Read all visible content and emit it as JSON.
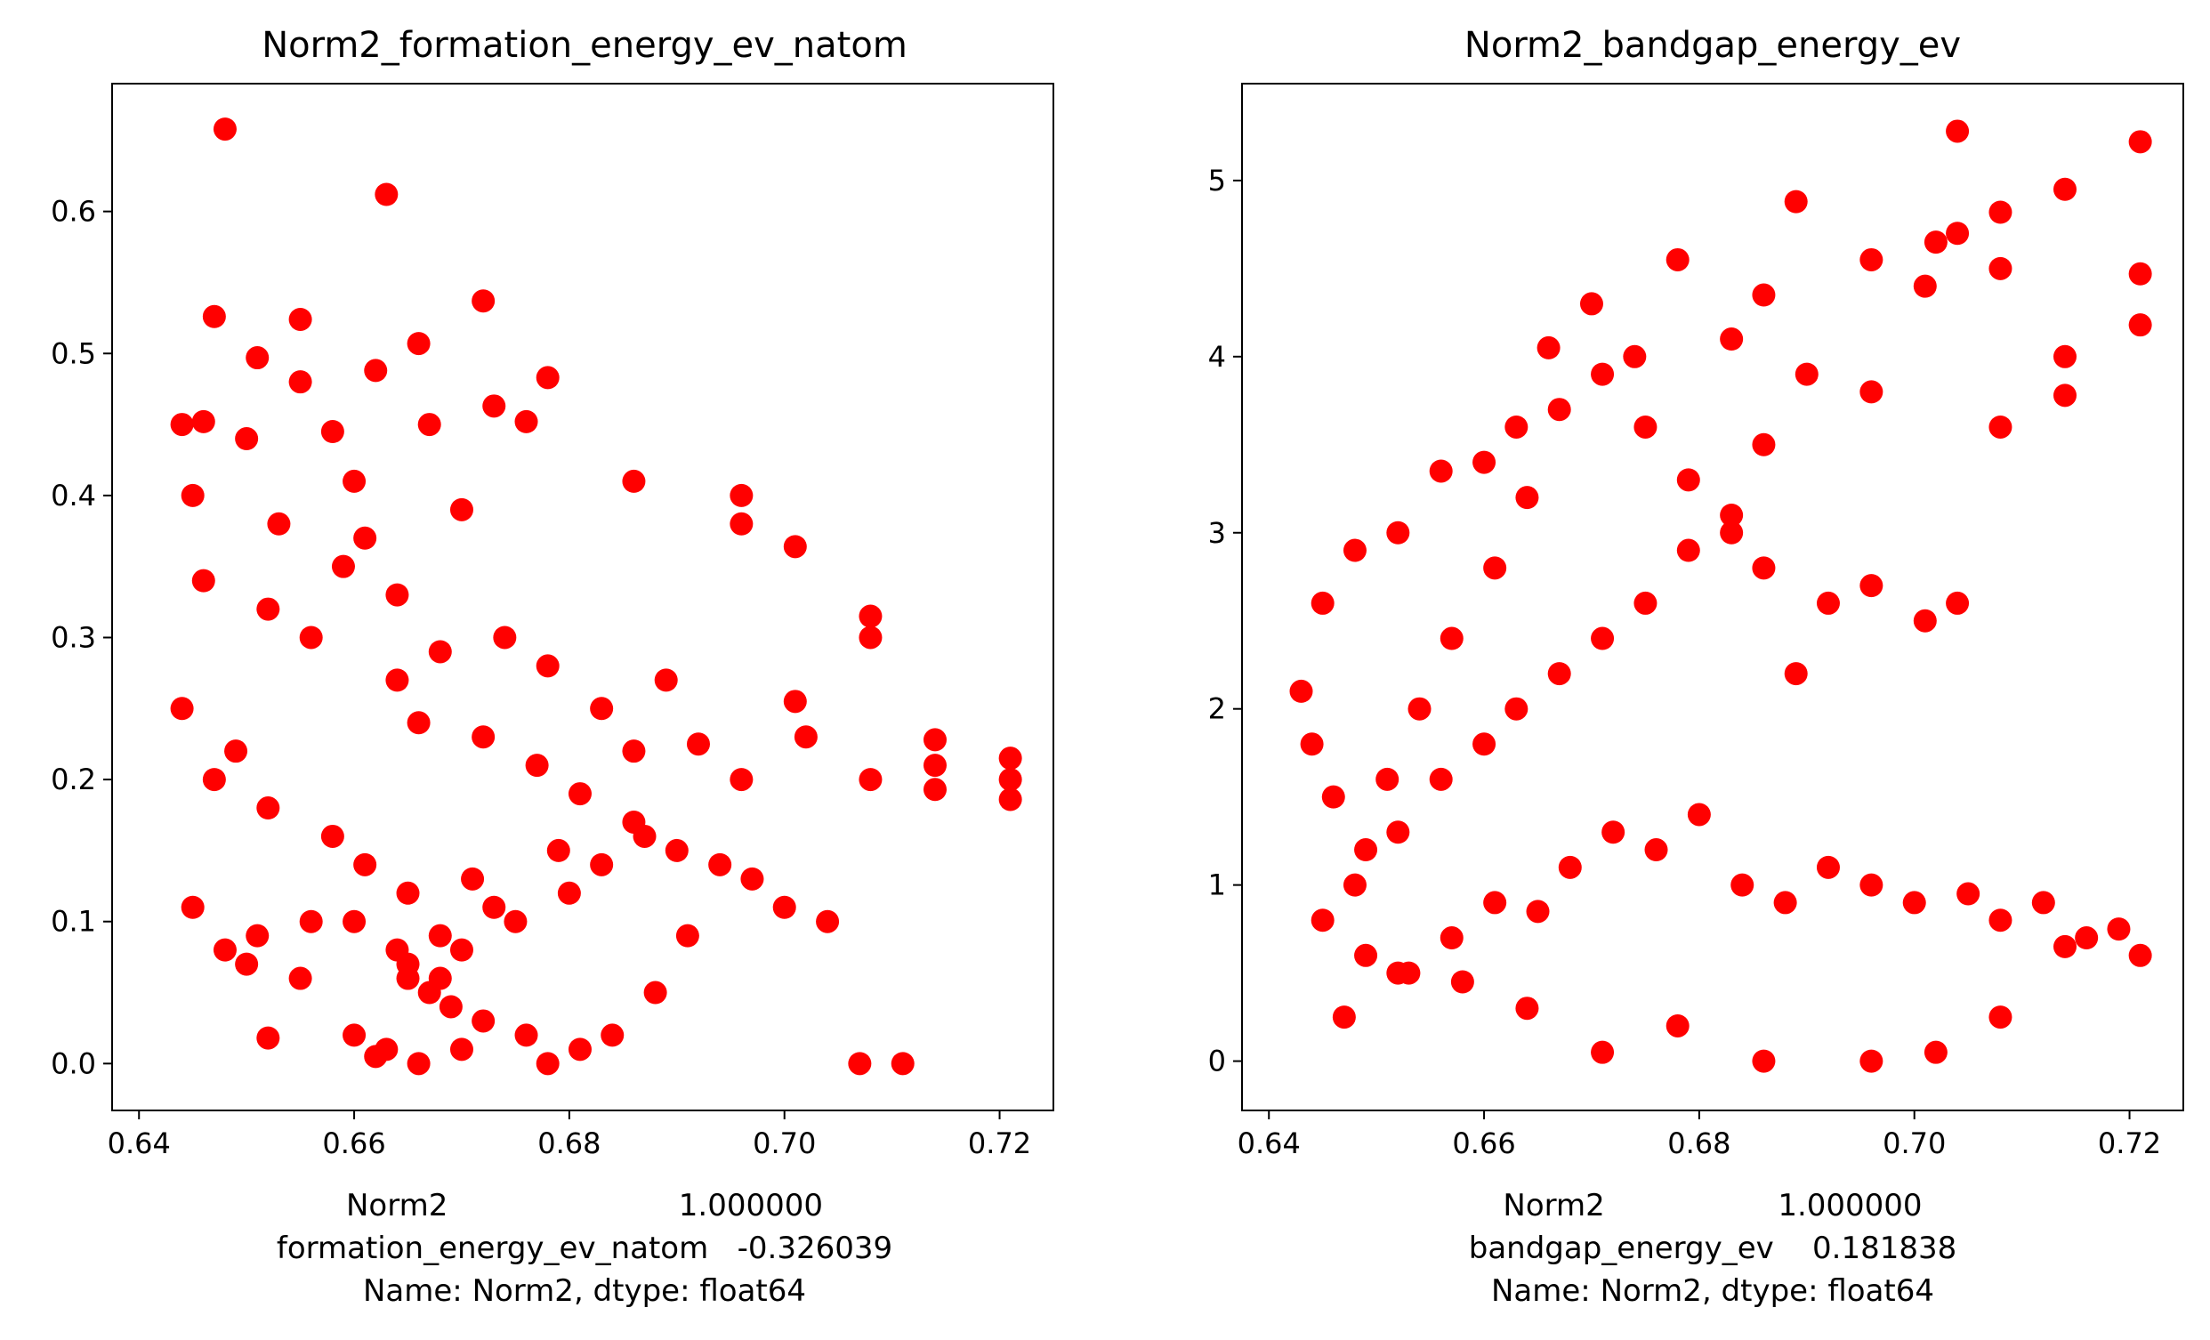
{
  "colors": {
    "marker": "#ff0000",
    "axes": "#000000",
    "background": "#ffffff"
  },
  "chart_data": [
    {
      "type": "scatter",
      "title": "Norm2_formation_energy_ev_natom",
      "xlabel_lines": [
        "Norm2                        1.000000",
        "formation_energy_ev_natom   -0.326039",
        "Name: Norm2, dtype: float64"
      ],
      "ylabel": "",
      "xlim": [
        0.6375,
        0.725
      ],
      "ylim": [
        -0.033,
        0.69
      ],
      "xticks": [
        0.64,
        0.66,
        0.68,
        0.7,
        0.72
      ],
      "xtick_labels": [
        "0.64",
        "0.66",
        "0.68",
        "0.70",
        "0.72"
      ],
      "yticks": [
        0.0,
        0.1,
        0.2,
        0.3,
        0.4,
        0.5,
        0.6
      ],
      "ytick_labels": [
        "0.0",
        "0.1",
        "0.2",
        "0.3",
        "0.4",
        "0.5",
        "0.6"
      ],
      "grid": false,
      "marker_color": "#ff0000",
      "x": [
        0.648,
        0.663,
        0.647,
        0.655,
        0.672,
        0.651,
        0.666,
        0.662,
        0.655,
        0.678,
        0.673,
        0.644,
        0.646,
        0.667,
        0.65,
        0.658,
        0.676,
        0.66,
        0.645,
        0.653,
        0.661,
        0.67,
        0.686,
        0.696,
        0.701,
        0.708,
        0.714,
        0.721,
        0.721,
        0.714,
        0.708,
        0.701,
        0.696,
        0.689,
        0.686,
        0.683,
        0.678,
        0.674,
        0.668,
        0.664,
        0.659,
        0.652,
        0.646,
        0.644,
        0.649,
        0.656,
        0.664,
        0.666,
        0.672,
        0.677,
        0.681,
        0.692,
        0.696,
        0.702,
        0.708,
        0.714,
        0.721,
        0.686,
        0.679,
        0.671,
        0.665,
        0.661,
        0.658,
        0.652,
        0.647,
        0.665,
        0.667,
        0.669,
        0.672,
        0.676,
        0.678,
        0.681,
        0.684,
        0.688,
        0.691,
        0.666,
        0.663,
        0.66,
        0.656,
        0.651,
        0.648,
        0.645,
        0.665,
        0.668,
        0.67,
        0.675,
        0.68,
        0.683,
        0.687,
        0.69,
        0.694,
        0.697,
        0.7,
        0.704,
        0.707,
        0.711,
        0.655,
        0.65,
        0.66,
        0.664,
        0.668,
        0.673,
        0.652,
        0.662,
        0.67
      ],
      "y": [
        0.658,
        0.612,
        0.526,
        0.524,
        0.537,
        0.497,
        0.507,
        0.488,
        0.48,
        0.483,
        0.463,
        0.45,
        0.452,
        0.45,
        0.44,
        0.445,
        0.452,
        0.41,
        0.4,
        0.38,
        0.37,
        0.39,
        0.41,
        0.4,
        0.364,
        0.315,
        0.228,
        0.215,
        0.186,
        0.193,
        0.3,
        0.255,
        0.38,
        0.27,
        0.22,
        0.25,
        0.28,
        0.3,
        0.29,
        0.33,
        0.35,
        0.32,
        0.34,
        0.25,
        0.22,
        0.3,
        0.27,
        0.24,
        0.23,
        0.21,
        0.19,
        0.225,
        0.2,
        0.23,
        0.2,
        0.21,
        0.2,
        0.17,
        0.15,
        0.13,
        0.12,
        0.14,
        0.16,
        0.18,
        0.2,
        0.06,
        0.05,
        0.04,
        0.03,
        0.02,
        0.0,
        0.01,
        0.02,
        0.05,
        0.09,
        0.0,
        0.01,
        0.02,
        0.1,
        0.09,
        0.08,
        0.11,
        0.07,
        0.06,
        0.08,
        0.1,
        0.12,
        0.14,
        0.16,
        0.15,
        0.14,
        0.13,
        0.11,
        0.1,
        0.0,
        0.0,
        0.06,
        0.07,
        0.1,
        0.08,
        0.09,
        0.11,
        0.018,
        0.005,
        0.01
      ]
    },
    {
      "type": "scatter",
      "title": "Norm2_bandgap_energy_ev",
      "xlabel_lines": [
        "Norm2                  1.000000",
        "bandgap_energy_ev    0.181838",
        "Name: Norm2, dtype: float64"
      ],
      "ylabel": "",
      "xlim": [
        0.6375,
        0.725
      ],
      "ylim": [
        -0.28,
        5.55
      ],
      "xticks": [
        0.64,
        0.66,
        0.68,
        0.7,
        0.72
      ],
      "xtick_labels": [
        "0.64",
        "0.66",
        "0.68",
        "0.70",
        "0.72"
      ],
      "yticks": [
        0,
        1,
        2,
        3,
        4,
        5
      ],
      "ytick_labels": [
        "0",
        "1",
        "2",
        "3",
        "4",
        "5"
      ],
      "grid": false,
      "marker_color": "#ff0000",
      "x": [
        0.704,
        0.721,
        0.708,
        0.714,
        0.702,
        0.696,
        0.689,
        0.686,
        0.683,
        0.678,
        0.674,
        0.67,
        0.666,
        0.663,
        0.66,
        0.656,
        0.652,
        0.648,
        0.645,
        0.643,
        0.644,
        0.646,
        0.649,
        0.651,
        0.654,
        0.657,
        0.661,
        0.664,
        0.667,
        0.671,
        0.675,
        0.679,
        0.683,
        0.686,
        0.69,
        0.696,
        0.701,
        0.704,
        0.708,
        0.714,
        0.721,
        0.721,
        0.714,
        0.708,
        0.704,
        0.701,
        0.696,
        0.692,
        0.689,
        0.686,
        0.683,
        0.679,
        0.675,
        0.671,
        0.667,
        0.663,
        0.66,
        0.656,
        0.652,
        0.648,
        0.645,
        0.649,
        0.653,
        0.657,
        0.661,
        0.665,
        0.668,
        0.672,
        0.676,
        0.68,
        0.684,
        0.688,
        0.692,
        0.696,
        0.7,
        0.705,
        0.708,
        0.712,
        0.716,
        0.719,
        0.721,
        0.714,
        0.708,
        0.702,
        0.696,
        0.686,
        0.678,
        0.671,
        0.664,
        0.658,
        0.652,
        0.647
      ],
      "y": [
        5.28,
        5.22,
        4.82,
        4.95,
        4.65,
        4.55,
        4.88,
        4.35,
        4.1,
        4.55,
        4.0,
        4.3,
        4.05,
        3.6,
        3.4,
        3.35,
        3.0,
        2.9,
        2.6,
        2.1,
        1.8,
        1.5,
        1.2,
        1.6,
        2.0,
        2.4,
        2.8,
        3.2,
        3.7,
        3.9,
        3.6,
        3.3,
        3.0,
        3.5,
        3.9,
        3.8,
        4.4,
        4.7,
        4.5,
        4.0,
        4.47,
        4.18,
        3.78,
        3.6,
        2.6,
        2.5,
        2.7,
        2.6,
        2.2,
        2.8,
        3.1,
        2.9,
        2.6,
        2.4,
        2.2,
        2.0,
        1.8,
        1.6,
        1.3,
        1.0,
        0.8,
        0.6,
        0.5,
        0.7,
        0.9,
        0.85,
        1.1,
        1.3,
        1.2,
        1.4,
        1.0,
        0.9,
        1.1,
        1.0,
        0.9,
        0.95,
        0.8,
        0.9,
        0.7,
        0.75,
        0.6,
        0.65,
        0.25,
        0.05,
        0.0,
        0.0,
        0.2,
        0.05,
        0.3,
        0.45,
        0.5,
        0.25
      ]
    }
  ]
}
